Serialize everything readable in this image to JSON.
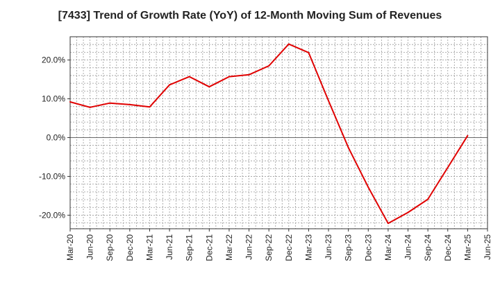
{
  "chart_data": {
    "type": "line",
    "title": "[7433]  Trend of Growth Rate (YoY) of 12-Month Moving Sum of Revenues",
    "xlabel": "",
    "ylabel": "",
    "ylim": [
      -23.5,
      26.0
    ],
    "yticks": [
      -20,
      -10,
      0,
      10,
      20
    ],
    "ytick_labels": [
      "-20.0%",
      "-10.0%",
      "0.0%",
      "10.0%",
      "20.0%"
    ],
    "categories": [
      "Mar-20",
      "Jun-20",
      "Sep-20",
      "Dec-20",
      "Mar-21",
      "Jun-21",
      "Sep-21",
      "Dec-21",
      "Mar-22",
      "Jun-22",
      "Sep-22",
      "Dec-22",
      "Mar-23",
      "Jun-23",
      "Sep-23",
      "Dec-23",
      "Mar-24",
      "Jun-24",
      "Sep-24",
      "Dec-24",
      "Mar-25",
      "Jun-25"
    ],
    "grid": true,
    "series": [
      {
        "color": "#e00000",
        "values": [
          9.2,
          7.8,
          8.9,
          8.5,
          7.9,
          13.6,
          15.7,
          13.1,
          15.7,
          16.2,
          18.5,
          24.1,
          21.9,
          9.5,
          -2.6,
          -12.8,
          -22.1,
          -19.3,
          -15.9,
          -7.7,
          0.5,
          null
        ]
      }
    ]
  }
}
